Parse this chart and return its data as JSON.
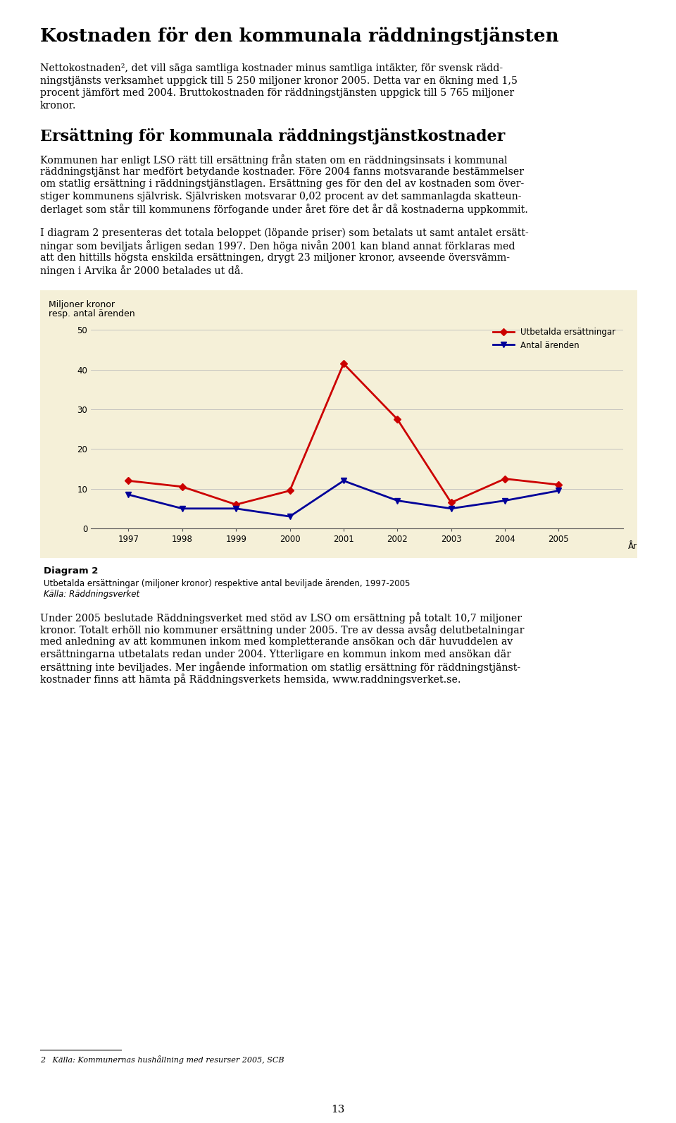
{
  "page_title": "Kostnaden för den kommunala räddningstjänsten",
  "section_title": "Ersättning för kommunala räddningstjänstkostnader",
  "chart_ylabel_line1": "Miljoner kronor",
  "chart_ylabel_line2": "resp. antal ärenden",
  "chart_xlabel": "År",
  "chart_bg": "#f5f0d8",
  "years": [
    1997,
    1998,
    1999,
    2000,
    2001,
    2002,
    2003,
    2004,
    2005
  ],
  "utbetalda": [
    12.0,
    10.5,
    6.0,
    9.5,
    41.5,
    27.5,
    6.5,
    12.5,
    11.0
  ],
  "antal": [
    8.5,
    5.0,
    5.0,
    3.0,
    12.0,
    7.0,
    5.0,
    7.0,
    9.5
  ],
  "utbetalda_color": "#cc0000",
  "antal_color": "#000099",
  "yticks": [
    0,
    10,
    20,
    30,
    40,
    50
  ],
  "ylim": [
    0,
    52
  ],
  "legend_utbetalda": "Utbetalda ersättningar",
  "legend_antal": "Antal ärenden",
  "diagram_label": "Diagram 2",
  "diagram_caption": "Utbetalda ersättningar (miljoner kronor) respektive antal beviljade ärenden, 1997-2005",
  "diagram_source": "Källa: Räddningsverket",
  "footnote_num": "2",
  "footnote_text": "Källa: Kommunernas hushållning med resurser 2005, SCB",
  "page_number": "13",
  "bg_color": "#ffffff",
  "text_color": "#000000",
  "para1_lines": [
    "Nettokostnaden², det vill säga samtliga kostnader minus samtliga intäkter, för svensk rädd-",
    "ningstjänsts verksamhet uppgick till 5 250 miljoner kronor 2005. Detta var en ökning med 1,5",
    "procent jämfört med 2004. Bruttokostnaden för räddningstjänsten uppgick till 5 765 miljoner",
    "kronor."
  ],
  "para2_lines": [
    "Kommunen har enligt LSO rätt till ersättning från staten om en räddningsinsats i kommunal",
    "räddningstjänst har medfört betydande kostnader. Före 2004 fanns motsvarande bestämmelser",
    "om statlig ersättning i räddningstjänstlagen. Ersättning ges för den del av kostnaden som över-",
    "stiger kommunens självrisk. Självrisken motsvarar 0,02 procent av det sammanlagda skatteun-",
    "derlaget som står till kommunens förfogande under året före det år då kostnaderna uppkommit."
  ],
  "para3_lines": [
    "I diagram 2 presenteras det totala beloppet (löpande priser) som betalats ut samt antalet ersätt-",
    "ningar som beviljats årligen sedan 1997. Den höga nivån 2001 kan bland annat förklaras med",
    "att den hittills högsta enskilda ersättningen, drygt 23 miljoner kronor, avseende översvämm-",
    "ningen i Arvika år 2000 betalades ut då."
  ],
  "para4_lines": [
    "Under 2005 beslutade Räddningsverket med stöd av LSO om ersättning på totalt 10,7 miljoner",
    "kronor. Totalt erhöll nio kommuner ersättning under 2005. Tre av dessa avsåg delutbetalningar",
    "med anledning av att kommunen inkom med kompletterande ansökan och där huvuddelen av",
    "ersättningarna utbetalats redan under 2004. Ytterligare en kommun inkom med ansökan där",
    "ersättning inte beviljades. Mer ingående information om statlig ersättning för räddningstjänst-",
    "kostnader finns att hämta på Räddningsverkets hemsida, www.raddningsverket.se."
  ]
}
